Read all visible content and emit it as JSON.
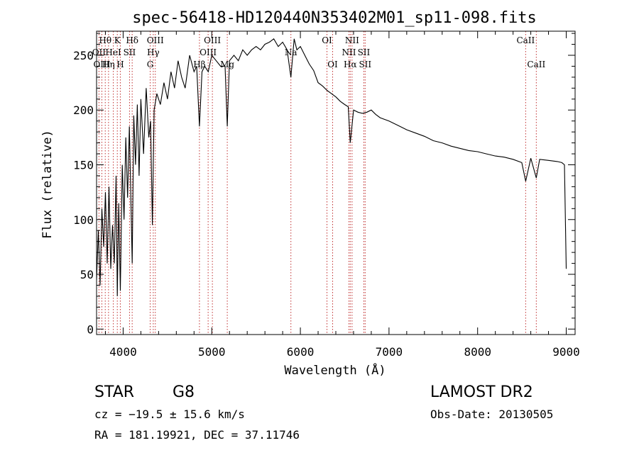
{
  "chart_data": {
    "type": "line",
    "title": "spec-56418-HD120440N353402M01_sp11-098.fits",
    "xlabel": "Wavelength (Å)",
    "ylabel": "Flux (relative)",
    "xlim": [
      3700,
      9100
    ],
    "ylim": [
      -5,
      272
    ],
    "xticks": [
      4000,
      5000,
      6000,
      7000,
      8000,
      9000
    ],
    "yticks": [
      0,
      50,
      100,
      150,
      200,
      250
    ],
    "grid": false,
    "series": [
      {
        "x": [
          3700,
          3720,
          3740,
          3760,
          3780,
          3800,
          3820,
          3840,
          3860,
          3880,
          3900,
          3920,
          3934,
          3950,
          3968,
          3990,
          4010,
          4030,
          4050,
          4070,
          4102,
          4120,
          4140,
          4160,
          4180,
          4200,
          4230,
          4260,
          4290,
          4310,
          4330,
          4350,
          4380,
          4420,
          4460,
          4500,
          4540,
          4580,
          4620,
          4660,
          4700,
          4750,
          4800,
          4830,
          4861,
          4890,
          4920,
          4960,
          5000,
          5050,
          5100,
          5150,
          5175,
          5200,
          5250,
          5300,
          5350,
          5400,
          5450,
          5500,
          5550,
          5600,
          5650,
          5700,
          5750,
          5800,
          5850,
          5893,
          5930,
          5960,
          6000,
          6050,
          6100,
          6150,
          6200,
          6250,
          6300,
          6350,
          6400,
          6450,
          6500,
          6540,
          6563,
          6600,
          6650,
          6700,
          6750,
          6800,
          6850,
          6900,
          7000,
          7100,
          7200,
          7300,
          7400,
          7500,
          7600,
          7700,
          7800,
          7900,
          8000,
          8100,
          8200,
          8300,
          8400,
          8498,
          8542,
          8600,
          8662,
          8700,
          8800,
          8900,
          8950,
          8980,
          9000
        ],
        "y": [
          45,
          90,
          40,
          110,
          75,
          125,
          60,
          130,
          55,
          95,
          60,
          140,
          30,
          115,
          35,
          150,
          100,
          175,
          120,
          185,
          60,
          195,
          150,
          205,
          140,
          210,
          160,
          220,
          175,
          190,
          95,
          200,
          215,
          205,
          225,
          210,
          235,
          220,
          245,
          230,
          220,
          250,
          235,
          240,
          185,
          235,
          240,
          235,
          250,
          245,
          240,
          240,
          185,
          245,
          250,
          245,
          255,
          250,
          255,
          258,
          255,
          260,
          262,
          265,
          258,
          262,
          255,
          230,
          265,
          255,
          258,
          250,
          242,
          236,
          225,
          222,
          218,
          215,
          212,
          208,
          205,
          203,
          170,
          200,
          198,
          197,
          198,
          200,
          196,
          193,
          190,
          186,
          182,
          179,
          176,
          172,
          170,
          167,
          165,
          163,
          162,
          160,
          158,
          157,
          155,
          152,
          135,
          156,
          138,
          155,
          154,
          153,
          152,
          150,
          55
        ]
      }
    ],
    "lines": [
      {
        "name": "Hθ",
        "wave": 3798,
        "row": 1
      },
      {
        "name": "OII",
        "wave": 3727,
        "row": 2
      },
      {
        "name": "OIII",
        "wave": 3760,
        "row": 3
      },
      {
        "name": "K",
        "wave": 3934,
        "row": 1
      },
      {
        "name": "HeI",
        "wave": 3889,
        "row": 2
      },
      {
        "name": "Hη",
        "wave": 3835,
        "row": 3
      },
      {
        "name": "Hδ",
        "wave": 4102,
        "row": 1
      },
      {
        "name": "SII",
        "wave": 4072,
        "row": 2
      },
      {
        "name": "H",
        "wave": 3968,
        "row": 3
      },
      {
        "name": "OIII",
        "wave": 4363,
        "row": 1
      },
      {
        "name": "Hγ",
        "wave": 4340,
        "row": 2
      },
      {
        "name": "G",
        "wave": 4305,
        "row": 3
      },
      {
        "name": "OIII",
        "wave": 5007,
        "row": 1
      },
      {
        "name": "OIII",
        "wave": 4959,
        "row": 2
      },
      {
        "name": "Hβ",
        "wave": 4861,
        "row": 3
      },
      {
        "name": "Mg",
        "wave": 5175,
        "row": 3
      },
      {
        "name": "Na",
        "wave": 5893,
        "row": 2
      },
      {
        "name": "OI",
        "wave": 6300,
        "row": 1
      },
      {
        "name": "OI",
        "wave": 6364,
        "row": 3
      },
      {
        "name": "NII",
        "wave": 6583,
        "row": 1
      },
      {
        "name": "NII",
        "wave": 6548,
        "row": 2
      },
      {
        "name": "Hα",
        "wave": 6563,
        "row": 3
      },
      {
        "name": "SII",
        "wave": 6716,
        "row": 2
      },
      {
        "name": "SII",
        "wave": 6731,
        "row": 3
      },
      {
        "name": "CaII",
        "wave": 8542,
        "row": 1
      },
      {
        "name": "CaII",
        "wave": 8662,
        "row": 3
      }
    ]
  },
  "info": {
    "class_label": "STAR",
    "subclass": "G8",
    "survey": "LAMOST DR2",
    "cz": "cz = −19.5 ± 15.6 km/s",
    "obs_date": "Obs-Date: 20130505",
    "coords": "RA = 181.19921, DEC =  37.11746"
  }
}
